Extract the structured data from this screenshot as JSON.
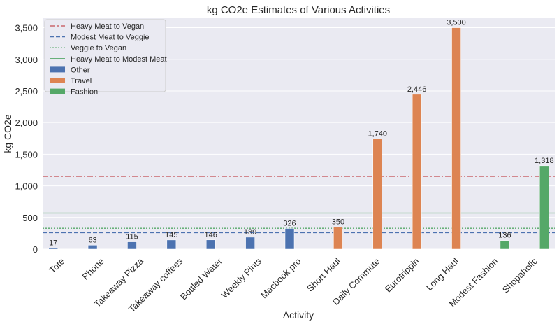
{
  "chart_data": {
    "type": "bar",
    "title": "kg CO2e Estimates of Various Activities",
    "xlabel": "Activity",
    "ylabel": "kg CO2e",
    "ylim": [
      0,
      3650
    ],
    "yticks": [
      0,
      500,
      1000,
      1500,
      2000,
      2500,
      3000,
      3500
    ],
    "ytick_labels": [
      "0",
      "500",
      "1,000",
      "1,500",
      "2,000",
      "2,500",
      "3,000",
      "3,500"
    ],
    "grid": "horizontal",
    "legend_position": "top-left",
    "categories": [
      "Tote",
      "Phone",
      "Takeaway Pizza",
      "Takeaway coffees",
      "Bottled Water",
      "Weekly Pints",
      "Macbook pro",
      "Short Haul",
      "Daily Commute",
      "Eurotrippin",
      "Long Haul",
      "Modest Fashion",
      "Shopaholic"
    ],
    "series": [
      {
        "name": "Other",
        "color": "#4c72b0",
        "values": [
          17,
          63,
          115,
          145,
          146,
          189,
          326,
          null,
          null,
          null,
          null,
          null,
          null
        ]
      },
      {
        "name": "Travel",
        "color": "#dd8452",
        "values": [
          null,
          null,
          null,
          null,
          null,
          null,
          null,
          350,
          1740,
          2446,
          3500,
          null,
          null
        ]
      },
      {
        "name": "Fashion",
        "color": "#55a868",
        "values": [
          null,
          null,
          null,
          null,
          null,
          null,
          null,
          null,
          null,
          null,
          null,
          136,
          1318
        ]
      }
    ],
    "data_labels": [
      "17",
      "63",
      "115",
      "145",
      "146",
      "189",
      "326",
      "350",
      "1,740",
      "2,446",
      "3,500",
      "136",
      "1,318"
    ],
    "reference_lines": [
      {
        "name": "Heavy Meat to Vegan",
        "value": 1150,
        "color": "#c44e52",
        "style": "dashdot"
      },
      {
        "name": "Modest Meat to Veggie",
        "value": 260,
        "color": "#4c72b0",
        "style": "dashed"
      },
      {
        "name": "Veggie to Vegan",
        "value": 330,
        "color": "#55a868",
        "style": "dotted"
      },
      {
        "name": "Heavy Meat to Modest Meat",
        "value": 570,
        "color": "#55a868",
        "style": "solid"
      }
    ]
  }
}
